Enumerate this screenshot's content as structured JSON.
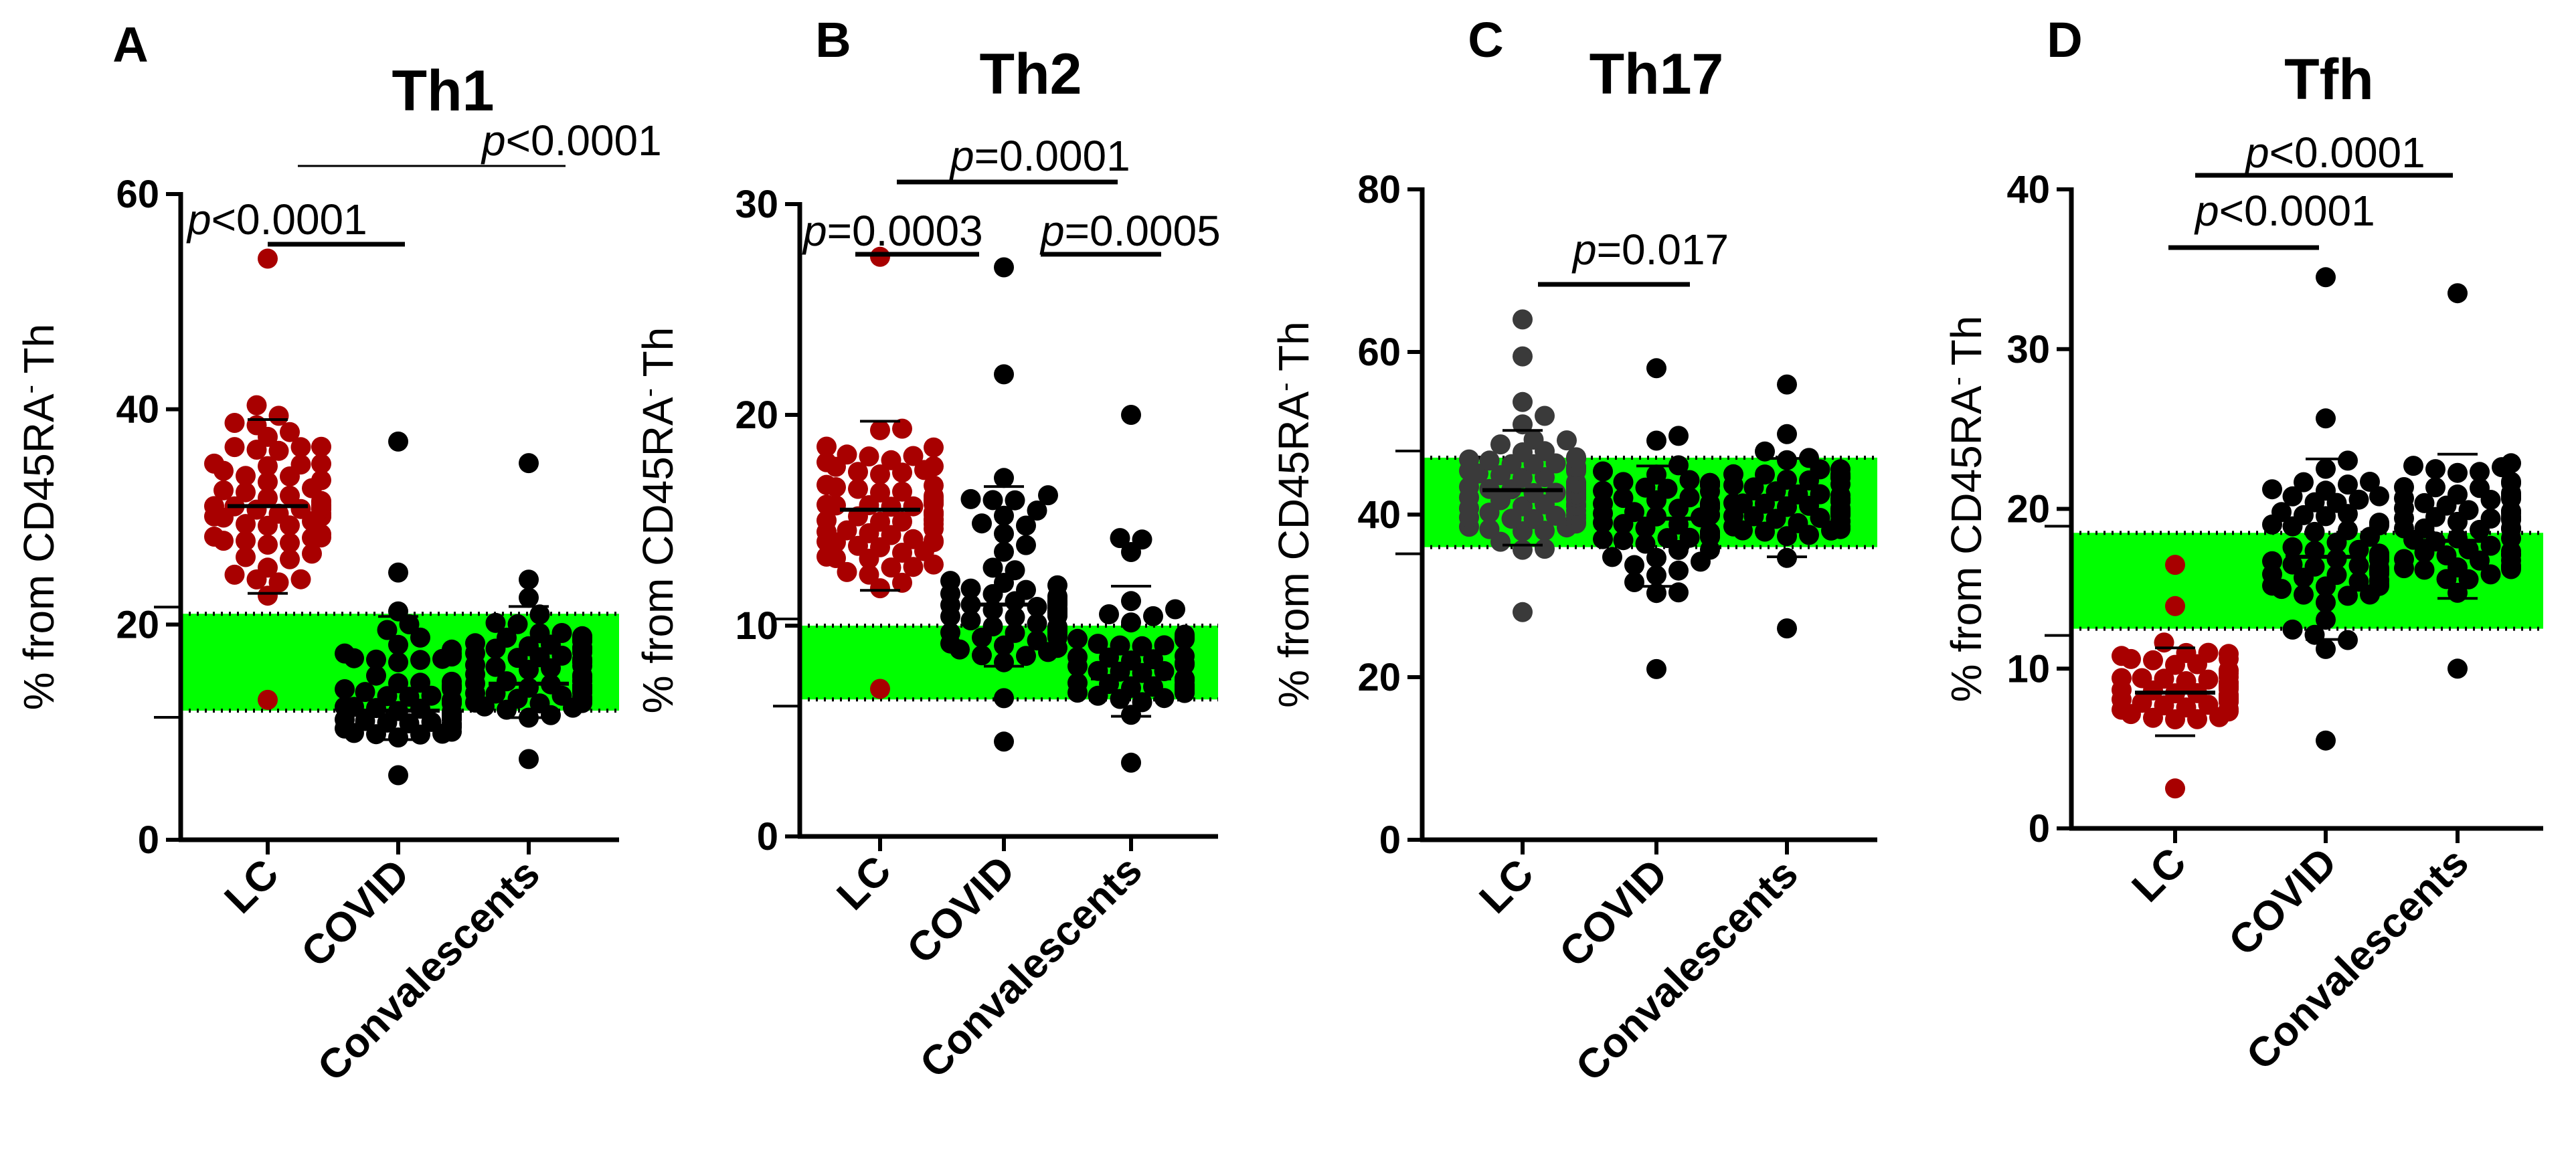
{
  "figure": {
    "ylabel_text": "% from CD45RA",
    "ylabel_sup": "-",
    "ylabel_suffix": " Th",
    "categories": [
      "LC",
      "COVID",
      "Convalescents"
    ]
  },
  "colors": {
    "lc": "#a80000",
    "covid": "#000000",
    "conv": "#000000",
    "th17_lc": "#3a3a3a",
    "band": "#00ff00"
  },
  "panels": [
    {
      "letter": "A",
      "title": "Th1",
      "yticks": [
        "0",
        "20",
        "40",
        "60"
      ],
      "ptexts": [
        {
          "it": "p",
          "rest": "<0.0001"
        },
        {
          "it": "p",
          "rest": "<0.0001"
        }
      ]
    },
    {
      "letter": "B",
      "title": "Th2",
      "yticks": [
        "0",
        "10",
        "20",
        "30"
      ],
      "ptexts": [
        {
          "it": "p",
          "rest": "=0.0003"
        },
        {
          "it": "p",
          "rest": "=0.0001"
        },
        {
          "it": "p",
          "rest": "=0.0005"
        }
      ]
    },
    {
      "letter": "C",
      "title": "Th17",
      "yticks": [
        "0",
        "20",
        "40",
        "60",
        "80"
      ],
      "ptexts": [
        {
          "it": "p",
          "rest": "=0.017"
        }
      ]
    },
    {
      "letter": "D",
      "title": "Tfh",
      "yticks": [
        "0",
        "10",
        "20",
        "30",
        "40"
      ],
      "ptexts": [
        {
          "it": "p",
          "rest": "<0.0001"
        },
        {
          "it": "p",
          "rest": "<0.0001"
        }
      ]
    }
  ],
  "chart_data": [
    {
      "type": "scatter",
      "title": "Th1",
      "ylabel": "% from CD45RA- Th",
      "categories": [
        "LC",
        "COVID",
        "Convalescents"
      ],
      "ylim": [
        0,
        60
      ],
      "reference_band": [
        12,
        21
      ],
      "series": [
        {
          "category": "LC",
          "n": 70,
          "mean": 31,
          "min": 13,
          "max": 54
        },
        {
          "category": "COVID",
          "n": 75,
          "mean": 12,
          "min": 6,
          "max": 37
        },
        {
          "category": "Convalescents",
          "n": 75,
          "mean": 14.5,
          "min": 7.5,
          "max": 35
        }
      ],
      "comparisons": [
        {
          "groups": [
            "LC",
            "COVID"
          ],
          "p": "<0.0001"
        },
        {
          "groups": [
            "COVID",
            "Convalescents"
          ],
          "p": "<0.0001"
        }
      ]
    },
    {
      "type": "scatter",
      "title": "Th2",
      "ylabel": "% from CD45RA- Th",
      "categories": [
        "LC",
        "COVID",
        "Convalescents"
      ],
      "ylim": [
        0,
        30
      ],
      "reference_band": [
        6.5,
        10
      ],
      "series": [
        {
          "category": "LC",
          "n": 70,
          "mean": 15.5,
          "min": 7,
          "max": 27.5
        },
        {
          "category": "COVID",
          "n": 75,
          "mean": 11,
          "min": 4.5,
          "max": 27
        },
        {
          "category": "Convalescents",
          "n": 60,
          "mean": 7.5,
          "min": 3.5,
          "max": 20
        }
      ],
      "comparisons": [
        {
          "groups": [
            "LC",
            "COVID"
          ],
          "p": "=0.0003"
        },
        {
          "groups": [
            "COVID",
            "Convalescents"
          ],
          "p": "=0.0001"
        },
        {
          "groups": [
            "COVID",
            "Convalescents"
          ],
          "p": "=0.0005"
        }
      ]
    },
    {
      "type": "scatter",
      "title": "Th17",
      "ylabel": "% from CD45RA- Th",
      "categories": [
        "LC",
        "COVID",
        "Convalescents"
      ],
      "ylim": [
        0,
        80
      ],
      "reference_band": [
        36,
        47
      ],
      "series": [
        {
          "category": "LC",
          "n": 80,
          "mean": 43,
          "min": 28,
          "max": 64
        },
        {
          "category": "COVID",
          "n": 60,
          "mean": 39.5,
          "min": 21,
          "max": 58
        },
        {
          "category": "Convalescents",
          "n": 60,
          "mean": 42,
          "min": 26,
          "max": 56
        }
      ],
      "comparisons": [
        {
          "groups": [
            "LC",
            "COVID"
          ],
          "p": "=0.017"
        }
      ]
    },
    {
      "type": "scatter",
      "title": "Tfh",
      "ylabel": "% from CD45RA- Th",
      "categories": [
        "LC",
        "COVID",
        "Convalescents"
      ],
      "ylim": [
        0,
        40
      ],
      "reference_band": [
        12.5,
        18.5
      ],
      "series": [
        {
          "category": "LC",
          "n": 55,
          "mean": 8.5,
          "min": 2.5,
          "max": 16.5
        },
        {
          "category": "COVID",
          "n": 70,
          "mean": 17,
          "min": 5.5,
          "max": 34.5
        },
        {
          "category": "Convalescents",
          "n": 65,
          "mean": 18,
          "min": 10,
          "max": 33.5
        }
      ],
      "comparisons": [
        {
          "groups": [
            "LC",
            "COVID"
          ],
          "p": "<0.0001"
        },
        {
          "groups": [
            "LC",
            "Convalescents"
          ],
          "p": "<0.0001"
        }
      ]
    }
  ]
}
